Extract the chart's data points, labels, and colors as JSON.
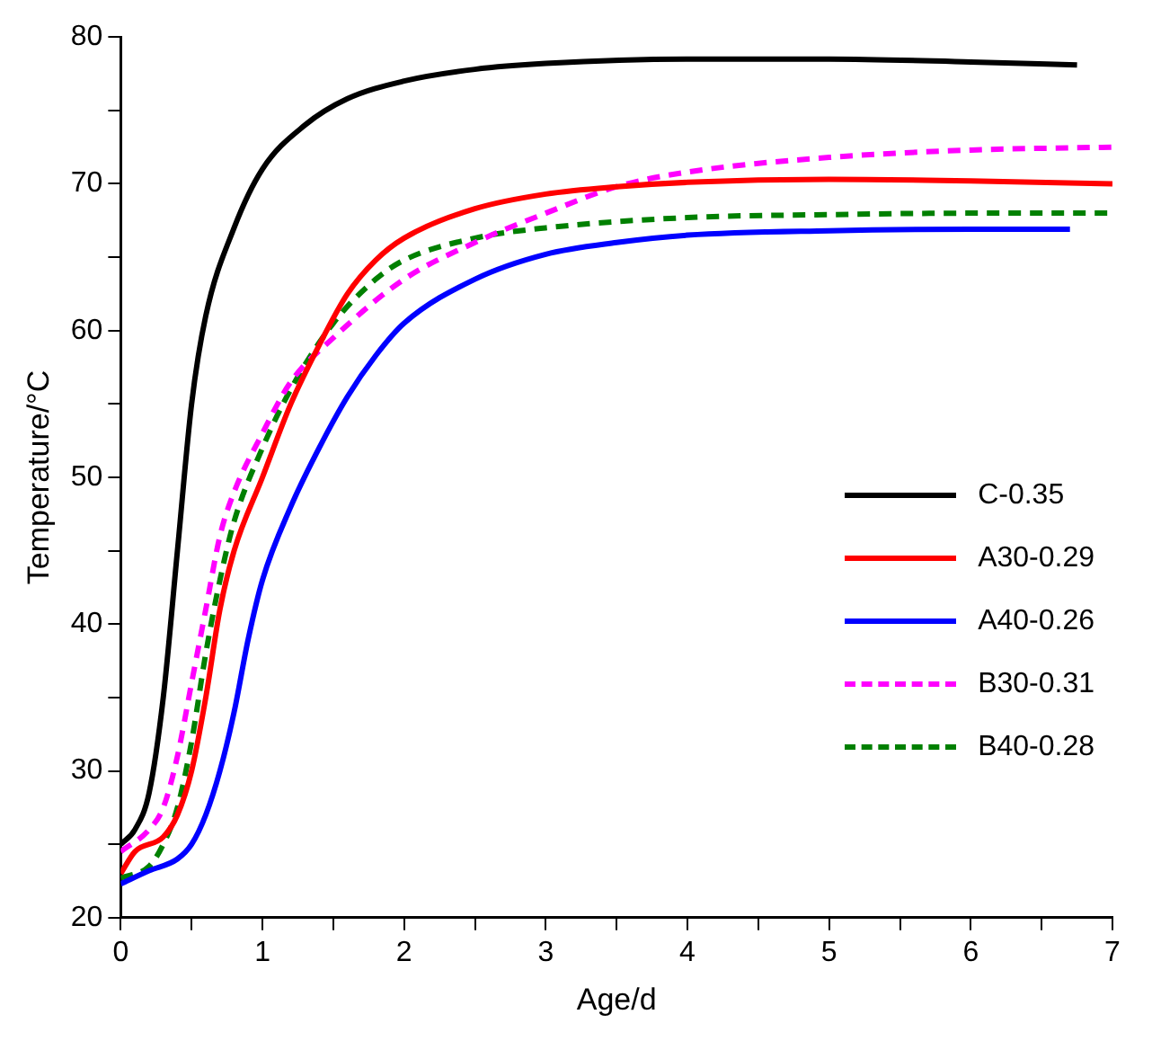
{
  "chart_data": {
    "type": "line",
    "xlabel": "Age/d",
    "ylabel": "Temperature/°C",
    "xlim": [
      0,
      7
    ],
    "ylim": [
      20,
      80
    ],
    "xticks": [
      0,
      {
        "value": 0.5,
        "label": null
      },
      1,
      {
        "value": 1.5,
        "label": null
      },
      2,
      {
        "value": 2.5,
        "label": null
      },
      3,
      {
        "value": 3.5,
        "label": null
      },
      4,
      {
        "value": 4.5,
        "label": null
      },
      5,
      {
        "value": 5.5,
        "label": null
      },
      6,
      {
        "value": 6.5,
        "label": null
      },
      7
    ],
    "yticks": [
      20,
      {
        "value": 25,
        "label": null
      },
      30,
      {
        "value": 35,
        "label": null
      },
      40,
      {
        "value": 45,
        "label": null
      },
      50,
      {
        "value": 55,
        "label": null
      },
      60,
      {
        "value": 65,
        "label": null
      },
      70,
      {
        "value": 75,
        "label": null
      },
      80
    ],
    "grid": false,
    "legend": "right",
    "marker": "none",
    "series": [
      {
        "name": "C-0.35",
        "color": "#000000",
        "line_style": "solid",
        "x": [
          0,
          0.1,
          0.2,
          0.3,
          0.4,
          0.5,
          0.6,
          0.8,
          1.0,
          1.3,
          1.6,
          2.0,
          2.5,
          3,
          4,
          5,
          6,
          6.75
        ],
        "values": [
          25,
          26,
          28.5,
          35,
          45,
          55,
          61,
          67,
          71,
          74,
          75.8,
          77,
          77.8,
          78.2,
          78.5,
          78.5,
          78.3,
          78.1
        ]
      },
      {
        "name": "A30-0.29",
        "color": "#ff0000",
        "line_style": "solid",
        "x": [
          0,
          0.1,
          0.3,
          0.4,
          0.5,
          0.6,
          0.7,
          0.8,
          1.0,
          1.2,
          1.4,
          1.6,
          1.8,
          2.0,
          2.5,
          3,
          3.5,
          4,
          5,
          6,
          7
        ],
        "values": [
          23,
          24.5,
          25.5,
          27,
          30,
          35,
          41,
          45,
          50,
          55,
          59,
          62.5,
          64.8,
          66.3,
          68.3,
          69.3,
          69.8,
          70.1,
          70.3,
          70.2,
          70
        ]
      },
      {
        "name": "A40-0.26",
        "color": "#0000ff",
        "line_style": "solid",
        "x": [
          0,
          0.2,
          0.4,
          0.5,
          0.6,
          0.7,
          0.8,
          0.9,
          1.0,
          1.2,
          1.4,
          1.6,
          1.8,
          2.0,
          2.5,
          3,
          3.5,
          4,
          5,
          6,
          6.7
        ],
        "values": [
          22.3,
          23.2,
          24,
          25,
          27,
          30,
          34,
          39,
          43,
          48,
          52,
          55.5,
          58.3,
          60.5,
          63.5,
          65.2,
          66,
          66.5,
          66.8,
          66.9,
          66.9
        ]
      },
      {
        "name": "B30-0.31",
        "color": "#ff00ff",
        "line_style": "dashed",
        "x": [
          0,
          0.2,
          0.3,
          0.4,
          0.5,
          0.6,
          0.7,
          0.8,
          1.0,
          1.2,
          1.5,
          2.0,
          2.5,
          3,
          3.5,
          4,
          5,
          6,
          7
        ],
        "values": [
          24.5,
          26,
          27.5,
          31,
          36,
          41,
          46,
          49,
          53,
          56.5,
          59.5,
          63.5,
          66,
          68,
          69.8,
          70.8,
          71.8,
          72.3,
          72.5
        ]
      },
      {
        "name": "B40-0.28",
        "color": "#008000",
        "line_style": "dashed",
        "x": [
          0,
          0.2,
          0.3,
          0.4,
          0.5,
          0.6,
          0.7,
          0.8,
          1.0,
          1.2,
          1.5,
          1.8,
          2.0,
          2.5,
          3,
          4,
          5,
          6,
          7
        ],
        "values": [
          22.7,
          23.5,
          25,
          27.5,
          32,
          38,
          43,
          47,
          52,
          56,
          60.5,
          63.5,
          64.8,
          66.3,
          67,
          67.7,
          67.9,
          68,
          68
        ]
      }
    ]
  }
}
